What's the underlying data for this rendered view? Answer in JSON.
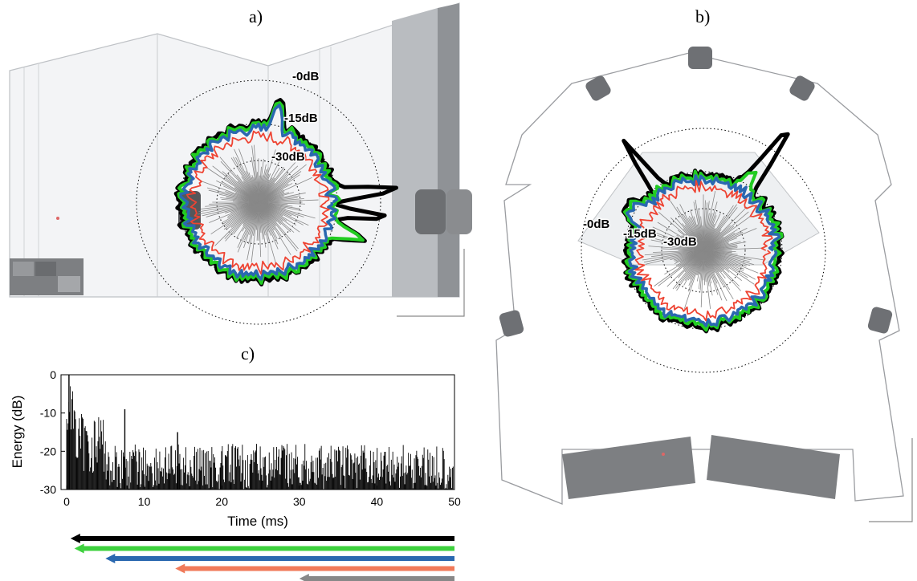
{
  "panels": {
    "a": {
      "label": "a)"
    },
    "b": {
      "label": "b)"
    },
    "c": {
      "label": "c)"
    }
  },
  "polar_levels": [
    "-0dB",
    "-15dB",
    "-30dB"
  ],
  "colors": {
    "black_band": "#000000",
    "green_band": "#22cc22",
    "blue_band": "#2a68b0",
    "red_band": "#ee4433",
    "gray_band": "#888888",
    "arrow_red": "#f07a5a",
    "arrow_green": "#3ed13e"
  },
  "chart_data": {
    "type": "bar",
    "title": "",
    "xlabel": "Time (ms)",
    "ylabel": "Energy (dB)",
    "xlim": [
      0,
      50
    ],
    "ylim": [
      -30,
      0
    ],
    "xticks": [
      0,
      10,
      20,
      30,
      40,
      50
    ],
    "yticks": [
      0,
      -10,
      -20,
      -30
    ],
    "grid": false,
    "annotations": [
      {
        "t": 0.3,
        "energy": 0
      },
      {
        "t": 7.5,
        "energy": -9
      },
      {
        "t": 14.3,
        "energy": -15
      }
    ],
    "series": [
      {
        "color": "#000000",
        "start_ms": 0.5,
        "end_ms": 50
      },
      {
        "color": "#3ed13e",
        "start_ms": 1,
        "end_ms": 50
      },
      {
        "color": "#2a68b0",
        "start_ms": 5,
        "end_ms": 50
      },
      {
        "color": "#f07a5a",
        "start_ms": 14,
        "end_ms": 50
      },
      {
        "color": "#888888",
        "start_ms": 30,
        "end_ms": 50
      }
    ]
  }
}
